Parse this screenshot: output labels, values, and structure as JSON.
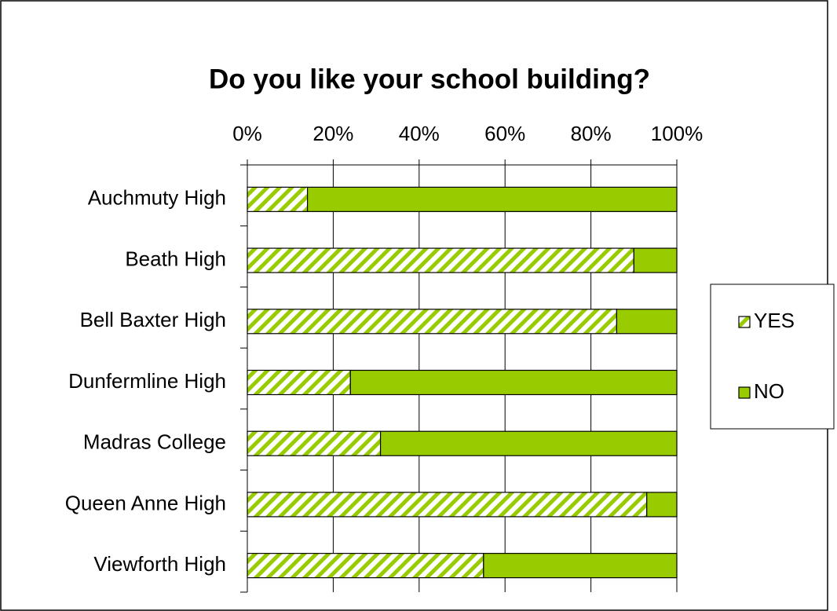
{
  "chart_data": {
    "type": "stacked_bar_horizontal",
    "title": "Do you like your school building?",
    "categories": [
      "Auchmuty High",
      "Beath High",
      "Bell Baxter High",
      "Dunfermline High",
      "Madras College",
      "Queen Anne High",
      "Viewforth High"
    ],
    "series": [
      {
        "name": "YES",
        "color": "#99cc00",
        "pattern": "hatch",
        "values": [
          14,
          90,
          86,
          24,
          31,
          93,
          55
        ]
      },
      {
        "name": "NO",
        "color": "#99cc00",
        "pattern": "solid",
        "values": [
          86,
          10,
          14,
          76,
          69,
          7,
          45
        ]
      }
    ],
    "xlim": [
      0,
      100
    ],
    "xticks": [
      {
        "value": 0,
        "label": "0%"
      },
      {
        "value": 20,
        "label": "20%"
      },
      {
        "value": 40,
        "label": "40%"
      },
      {
        "value": 60,
        "label": "60%"
      },
      {
        "value": 80,
        "label": "80%"
      },
      {
        "value": 100,
        "label": "100%"
      }
    ],
    "grid": true,
    "legend": "right"
  }
}
